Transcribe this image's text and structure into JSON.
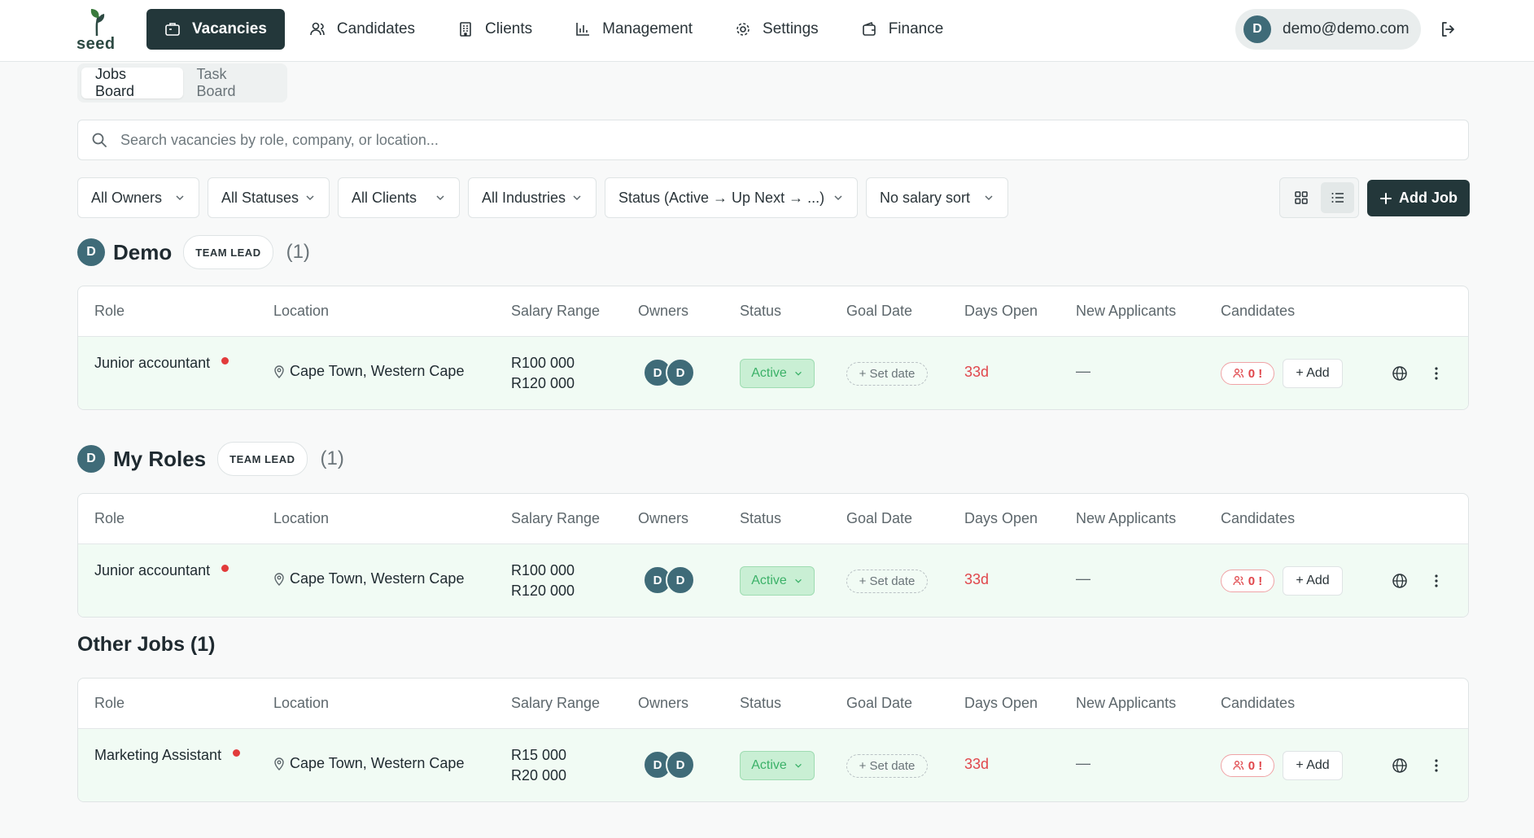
{
  "app": {
    "logo_text": "seed",
    "nav": [
      {
        "label": "Vacancies",
        "icon": "briefcase-icon",
        "active": true
      },
      {
        "label": "Candidates",
        "icon": "users-icon",
        "active": false
      },
      {
        "label": "Clients",
        "icon": "building-icon",
        "active": false
      },
      {
        "label": "Management",
        "icon": "bar-chart-icon",
        "active": false
      },
      {
        "label": "Settings",
        "icon": "gear-icon",
        "active": false
      },
      {
        "label": "Finance",
        "icon": "wallet-icon",
        "active": false
      }
    ],
    "user": {
      "initial": "D",
      "email": "demo@demo.com"
    }
  },
  "tabs": [
    "Jobs Board",
    "Task Board"
  ],
  "search": {
    "placeholder": "Search vacancies by role, company, or location...",
    "value": ""
  },
  "filters": {
    "owners": "All Owners",
    "statuses": "All Statuses",
    "clients": "All Clients",
    "industries": "All Industries",
    "status_sort": "Status (Active → Up Next → ...)",
    "salary_sort": "No salary sort"
  },
  "add_job_label": "Add Job",
  "columns": [
    "Role",
    "Location",
    "Salary Range",
    "Owners",
    "Status",
    "Goal Date",
    "Days Open",
    "New Applicants",
    "Candidates"
  ],
  "sections": [
    {
      "initial": "D",
      "title": "Demo",
      "badge": "TEAM LEAD",
      "count": "(1)",
      "rows": [
        {
          "role": "Junior accountant",
          "location": "Cape Town, Western Cape",
          "salary_min": "R100 000",
          "salary_max": "R120 000",
          "owners": [
            "D",
            "D"
          ],
          "status": "Active",
          "goal_date": "+ Set date",
          "days_open": "33d",
          "new_applicants": "—",
          "candidates": "0 !",
          "add_label": "+ Add"
        }
      ]
    },
    {
      "initial": "D",
      "title": "My Roles",
      "badge": "TEAM LEAD",
      "count": "(1)",
      "rows": [
        {
          "role": "Junior accountant",
          "location": "Cape Town, Western Cape",
          "salary_min": "R100 000",
          "salary_max": "R120 000",
          "owners": [
            "D",
            "D"
          ],
          "status": "Active",
          "goal_date": "+ Set date",
          "days_open": "33d",
          "new_applicants": "—",
          "candidates": "0 !",
          "add_label": "+ Add"
        }
      ]
    },
    {
      "title": "Other Jobs (1)",
      "rows": [
        {
          "role": "Marketing Assistant",
          "location": "Cape Town, Western Cape",
          "salary_min": "R15 000",
          "salary_max": "R20 000",
          "owners": [
            "D",
            "D"
          ],
          "status": "Active",
          "goal_date": "+ Set date",
          "days_open": "33d",
          "new_applicants": "—",
          "candidates": "0 !",
          "add_label": "+ Add"
        }
      ]
    }
  ],
  "colors": {
    "brand_dark": "#23373a",
    "active_green": "#3bb168",
    "alert_red": "#e0464b",
    "avatar": "#3f6b78"
  }
}
